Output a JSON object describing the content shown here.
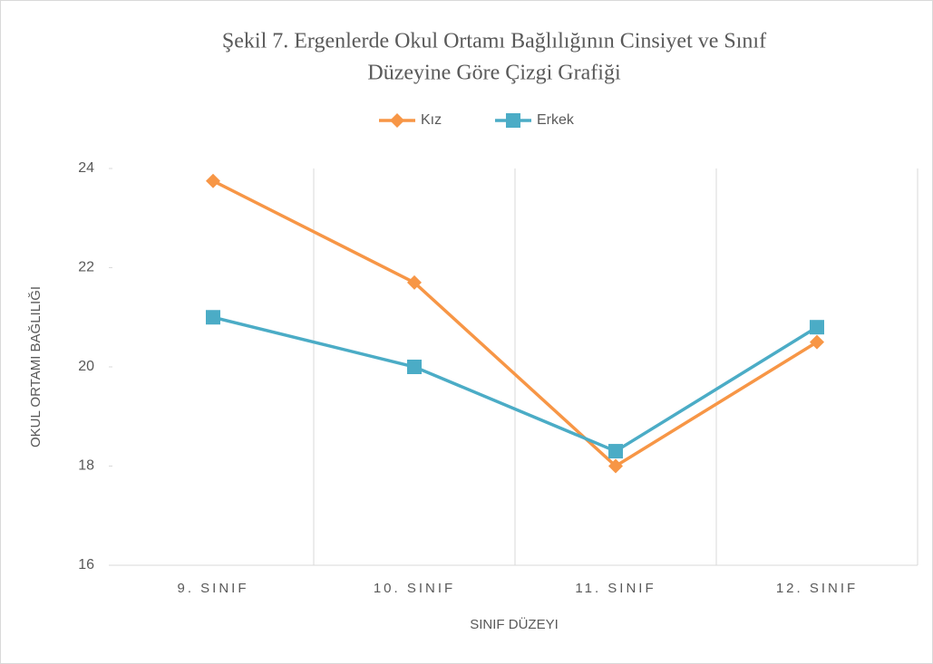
{
  "chart_data": {
    "type": "line",
    "title": [
      "Şekil 7. Ergenlerde Okul Ortamı Bağlılığının Cinsiyet ve Sınıf",
      "Düzeyine Göre Çizgi Grafiği"
    ],
    "categories": [
      "9. SINIF",
      "10. SINIF",
      "11. SINIF",
      "12. SINIF"
    ],
    "series": [
      {
        "name": "Kız",
        "color": "#f79646",
        "marker": "diamond",
        "values": [
          23.75,
          21.7,
          18,
          20.5
        ]
      },
      {
        "name": "Erkek",
        "color": "#4bacc6",
        "marker": "square",
        "values": [
          21,
          20,
          18.3,
          20.8
        ]
      }
    ],
    "xlabel": "SINIF DÜZEYI",
    "ylabel": "OKUL ORTAMI BAĞLILIĞI",
    "ylim": [
      16,
      24
    ],
    "yticks": [
      16,
      18,
      20,
      22,
      24
    ],
    "grid": "vertical",
    "legend": "top"
  }
}
